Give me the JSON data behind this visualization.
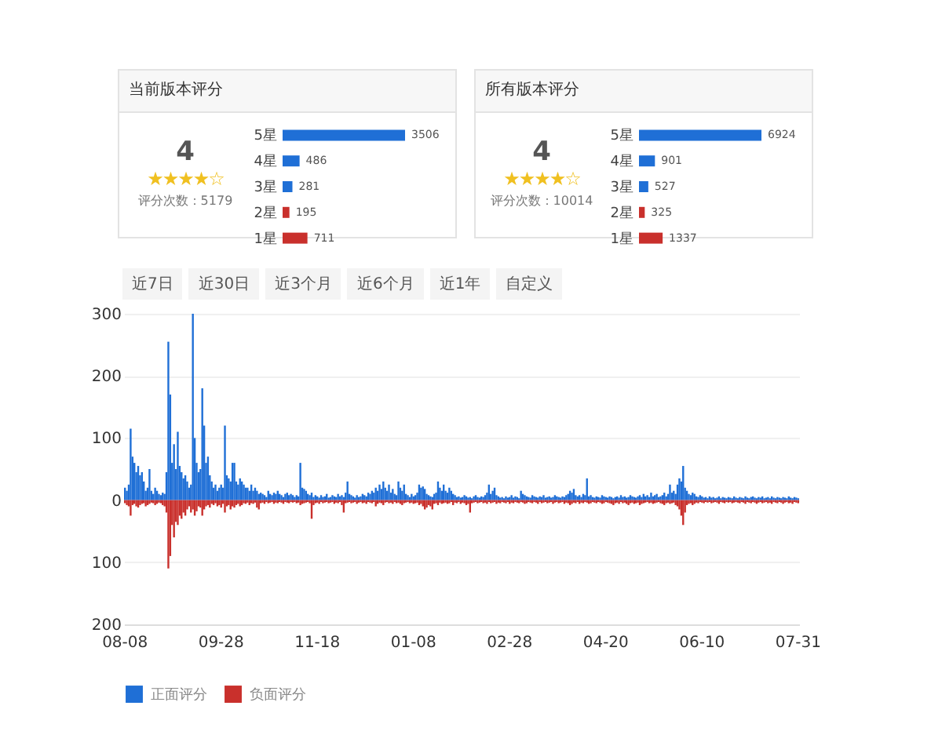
{
  "chart_data": [
    {
      "type": "bar",
      "orientation": "horizontal",
      "title": "当前版本评分",
      "categories": [
        "5星",
        "4星",
        "3星",
        "2星",
        "1星"
      ],
      "values": [
        3506,
        486,
        281,
        195,
        711
      ],
      "colors": [
        "#1f6fd6",
        "#1f6fd6",
        "#1f6fd6",
        "#c9302c",
        "#c9302c"
      ],
      "data_labels": true,
      "annotations": [
        "4",
        "★★★★☆",
        "评分次数：5179"
      ]
    },
    {
      "type": "bar",
      "orientation": "horizontal",
      "title": "所有版本评分",
      "categories": [
        "5星",
        "4星",
        "3星",
        "2星",
        "1星"
      ],
      "values": [
        6924,
        901,
        527,
        325,
        1337
      ],
      "colors": [
        "#1f6fd6",
        "#1f6fd6",
        "#1f6fd6",
        "#c9302c",
        "#c9302c"
      ],
      "data_labels": true,
      "annotations": [
        "4",
        "★★★★☆",
        "评分次数：10014"
      ]
    },
    {
      "type": "other",
      "annotations": [
        "近7日",
        "近30日",
        "近3个月",
        "近6个月",
        "近1年",
        "自定义"
      ]
    },
    {
      "type": "bar",
      "legend": "bottom",
      "grid": "y",
      "ylim": [
        -200,
        300
      ],
      "yticks": [
        {
          "value": -200,
          "label": "200"
        },
        {
          "value": -100,
          "label": "100"
        },
        0,
        100,
        200,
        300
      ],
      "categories": [
        "08-08",
        null,
        null,
        null,
        null,
        null,
        null,
        null,
        null,
        null,
        null,
        null,
        null,
        null,
        null,
        null,
        null,
        null,
        null,
        null,
        null,
        null,
        null,
        null,
        null,
        null,
        null,
        null,
        null,
        null,
        null,
        null,
        null,
        null,
        null,
        null,
        null,
        null,
        null,
        null,
        null,
        null,
        null,
        null,
        null,
        null,
        null,
        null,
        null,
        null,
        null,
        "09-28",
        null,
        null,
        null,
        null,
        null,
        null,
        null,
        null,
        null,
        null,
        null,
        null,
        null,
        null,
        null,
        null,
        null,
        null,
        null,
        null,
        null,
        null,
        null,
        null,
        null,
        null,
        null,
        null,
        null,
        null,
        null,
        null,
        null,
        null,
        null,
        null,
        null,
        null,
        null,
        null,
        null,
        null,
        null,
        null,
        null,
        null,
        null,
        null,
        null,
        null,
        "11-18",
        null,
        null,
        null,
        null,
        null,
        null,
        null,
        null,
        null,
        null,
        null,
        null,
        null,
        null,
        null,
        null,
        null,
        null,
        null,
        null,
        null,
        null,
        null,
        null,
        null,
        null,
        null,
        null,
        null,
        null,
        null,
        null,
        null,
        null,
        null,
        null,
        null,
        null,
        null,
        null,
        null,
        null,
        null,
        null,
        null,
        null,
        null,
        null,
        null,
        null,
        "01-08",
        null,
        null,
        null,
        null,
        null,
        null,
        null,
        null,
        null,
        null,
        null,
        null,
        null,
        null,
        null,
        null,
        null,
        null,
        null,
        null,
        null,
        null,
        null,
        null,
        null,
        null,
        null,
        null,
        null,
        null,
        null,
        null,
        null,
        null,
        null,
        null,
        null,
        null,
        null,
        null,
        null,
        null,
        null,
        null,
        null,
        null,
        null,
        null,
        null,
        null,
        "02-28",
        null,
        null,
        null,
        null,
        null,
        null,
        null,
        null,
        null,
        null,
        null,
        null,
        null,
        null,
        null,
        null,
        null,
        null,
        null,
        null,
        null,
        null,
        null,
        null,
        null,
        null,
        null,
        null,
        null,
        null,
        null,
        null,
        null,
        null,
        null,
        null,
        null,
        null,
        null,
        null,
        null,
        null,
        null,
        null,
        null,
        null,
        null,
        null,
        null,
        null,
        "04-20",
        null,
        null,
        null,
        null,
        null,
        null,
        null,
        null,
        null,
        null,
        null,
        null,
        null,
        null,
        null,
        null,
        null,
        null,
        null,
        null,
        null,
        null,
        null,
        null,
        null,
        null,
        null,
        null,
        null,
        null,
        null,
        null,
        null,
        null,
        null,
        null,
        null,
        null,
        null,
        null,
        null,
        null,
        null,
        null,
        null,
        null,
        null,
        null,
        null,
        null,
        "06-10",
        null,
        null,
        null,
        null,
        null,
        null,
        null,
        null,
        null,
        null,
        null,
        null,
        null,
        null,
        null,
        null,
        null,
        null,
        null,
        null,
        null,
        null,
        null,
        null,
        null,
        null,
        null,
        null,
        null,
        null,
        null,
        null,
        null,
        null,
        null,
        null,
        null,
        null,
        null,
        null,
        null,
        null,
        null,
        null,
        null,
        null,
        null,
        null,
        null,
        null,
        "07-31"
      ],
      "series": [
        {
          "name": "正面评分",
          "color": "#1f6fd6",
          "values": [
            20,
            15,
            25,
            115,
            70,
            60,
            45,
            55,
            40,
            45,
            30,
            15,
            20,
            50,
            15,
            10,
            20,
            15,
            10,
            8,
            12,
            10,
            45,
            255,
            170,
            60,
            90,
            50,
            110,
            55,
            45,
            35,
            40,
            30,
            20,
            25,
            300,
            100,
            60,
            45,
            50,
            180,
            120,
            60,
            70,
            40,
            30,
            20,
            25,
            15,
            20,
            25,
            20,
            120,
            40,
            35,
            30,
            60,
            60,
            30,
            25,
            35,
            30,
            25,
            20,
            20,
            15,
            25,
            15,
            20,
            15,
            10,
            12,
            10,
            8,
            5,
            15,
            10,
            8,
            12,
            10,
            15,
            10,
            8,
            5,
            10,
            12,
            8,
            10,
            8,
            5,
            8,
            6,
            60,
            20,
            18,
            15,
            10,
            8,
            12,
            5,
            8,
            6,
            4,
            8,
            5,
            6,
            10,
            4,
            5,
            8,
            6,
            5,
            10,
            6,
            8,
            5,
            12,
            30,
            10,
            8,
            6,
            4,
            8,
            5,
            6,
            10,
            8,
            6,
            12,
            10,
            15,
            12,
            20,
            15,
            25,
            18,
            30,
            20,
            15,
            25,
            12,
            18,
            10,
            8,
            30,
            20,
            15,
            25,
            10,
            8,
            5,
            10,
            6,
            8,
            12,
            25,
            20,
            22,
            18,
            10,
            8,
            6,
            5,
            10,
            12,
            30,
            20,
            15,
            25,
            15,
            12,
            20,
            15,
            10,
            8,
            5,
            6,
            4,
            5,
            8,
            6,
            4,
            5,
            3,
            6,
            8,
            5,
            4,
            6,
            5,
            8,
            12,
            25,
            10,
            15,
            20,
            8,
            6,
            4,
            5,
            3,
            6,
            4,
            5,
            8,
            4,
            6,
            5,
            3,
            15,
            10,
            8,
            6,
            5,
            4,
            8,
            6,
            5,
            4,
            6,
            5,
            8,
            4,
            5,
            6,
            4,
            5,
            8,
            6,
            5,
            4,
            6,
            5,
            8,
            10,
            15,
            12,
            18,
            8,
            6,
            8,
            5,
            10,
            8,
            35,
            6,
            8,
            5,
            4,
            6,
            5,
            4,
            8,
            6,
            5,
            4,
            6,
            5,
            3,
            5,
            6,
            4,
            8,
            5,
            6,
            4,
            5,
            8,
            6,
            5,
            4,
            6,
            8,
            5,
            10,
            6,
            8,
            5,
            12,
            6,
            8,
            10,
            5,
            6,
            8,
            12,
            6,
            10,
            25,
            12,
            15,
            10,
            25,
            35,
            30,
            55,
            20,
            15,
            10,
            8,
            12,
            10,
            6,
            5,
            8,
            6,
            4,
            5,
            3,
            6,
            4,
            5,
            3,
            4,
            6,
            3,
            5,
            4,
            3,
            5,
            4,
            3,
            6,
            4,
            3,
            5,
            4,
            3,
            6,
            4,
            3,
            5,
            6,
            4,
            3,
            5,
            4,
            6,
            3,
            4,
            5,
            3,
            6,
            4,
            3,
            5,
            4,
            3,
            5,
            4,
            3,
            6,
            4,
            3,
            5,
            4,
            3
          ]
        },
        {
          "name": "负面评分",
          "color": "#c9302c",
          "values": [
            -5,
            -8,
            -10,
            -25,
            -8,
            -6,
            -10,
            -12,
            -8,
            -6,
            -5,
            -10,
            -8,
            -6,
            -4,
            -5,
            -8,
            -6,
            -4,
            -5,
            -8,
            -10,
            -20,
            -110,
            -90,
            -40,
            -60,
            -35,
            -40,
            -25,
            -30,
            -20,
            -25,
            -15,
            -10,
            -20,
            -15,
            -25,
            -18,
            -10,
            -12,
            -25,
            -15,
            -10,
            -8,
            -12,
            -6,
            -8,
            -5,
            -10,
            -8,
            -12,
            -6,
            -20,
            -10,
            -8,
            -15,
            -10,
            -12,
            -8,
            -6,
            -10,
            -8,
            -5,
            -6,
            -4,
            -8,
            -5,
            -6,
            -4,
            -12,
            -15,
            -5,
            -4,
            -6,
            -3,
            -5,
            -4,
            -3,
            -6,
            -4,
            -5,
            -3,
            -4,
            -6,
            -3,
            -4,
            -5,
            -3,
            -4,
            -3,
            -5,
            -4,
            -8,
            -6,
            -5,
            -4,
            -3,
            -5,
            -30,
            -8,
            -5,
            -4,
            -6,
            -3,
            -5,
            -4,
            -3,
            -5,
            -4,
            -3,
            -6,
            -4,
            -5,
            -3,
            -8,
            -20,
            -5,
            -4,
            -3,
            -5,
            -4,
            -3,
            -6,
            -4,
            -3,
            -5,
            -4,
            -6,
            -3,
            -4,
            -5,
            -3,
            -10,
            -6,
            -4,
            -5,
            -8,
            -4,
            -3,
            -5,
            -4,
            -6,
            -3,
            -5,
            -4,
            -6,
            -8,
            -5,
            -4,
            -3,
            -5,
            -4,
            -6,
            -5,
            -4,
            -8,
            -6,
            -10,
            -15,
            -12,
            -8,
            -10,
            -15,
            -6,
            -5,
            -8,
            -4,
            -6,
            -5,
            -4,
            -6,
            -5,
            -3,
            -8,
            -4,
            -5,
            -3,
            -6,
            -4,
            -5,
            -8,
            -6,
            -20,
            -5,
            -4,
            -3,
            -5,
            -4,
            -3,
            -5,
            -4,
            -6,
            -3,
            -5,
            -4,
            -3,
            -6,
            -4,
            -5,
            -3,
            -4,
            -5,
            -3,
            -6,
            -4,
            -5,
            -3,
            -4,
            -5,
            -3,
            -4,
            -6,
            -5,
            -3,
            -4,
            -5,
            -3,
            -4,
            -6,
            -3,
            -5,
            -4,
            -3,
            -5,
            -4,
            -3,
            -6,
            -4,
            -3,
            -5,
            -4,
            -3,
            -6,
            -4,
            -5,
            -8,
            -6,
            -4,
            -5,
            -3,
            -6,
            -4,
            -5,
            -3,
            -4,
            -6,
            -5,
            -3,
            -4,
            -5,
            -3,
            -4,
            -6,
            -5,
            -3,
            -4,
            -5,
            -6,
            -8,
            -5,
            -4,
            -6,
            -3,
            -5,
            -4,
            -6,
            -8,
            -5,
            -4,
            -6,
            -5,
            -4,
            -8,
            -6,
            -5,
            -4,
            -3,
            -5,
            -4,
            -6,
            -5,
            -4,
            -3,
            -5,
            -6,
            -8,
            -5,
            -4,
            -6,
            -5,
            -4,
            -8,
            -10,
            -15,
            -25,
            -40,
            -20,
            -8,
            -6,
            -5,
            -8,
            -6,
            -4,
            -5,
            -3,
            -4,
            -5,
            -3,
            -4,
            -3,
            -5,
            -4,
            -3,
            -4,
            -6,
            -3,
            -4,
            -5,
            -3,
            -4,
            -3,
            -5,
            -4,
            -3,
            -4,
            -5,
            -3,
            -4,
            -6,
            -3,
            -4,
            -5,
            -3,
            -4,
            -6,
            -4,
            -3,
            -5,
            -4,
            -3,
            -5,
            -4,
            -6,
            -3,
            -4,
            -5,
            -3,
            -4,
            -6,
            -4,
            -3,
            -5,
            -4,
            -6,
            -3,
            -4,
            -5
          ]
        }
      ]
    }
  ]
}
